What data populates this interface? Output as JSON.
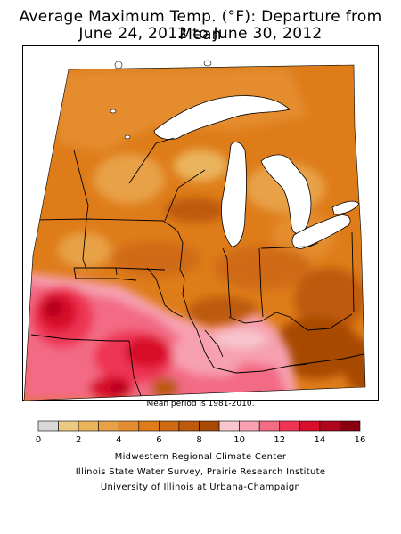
{
  "title_line1": "Average Maximum Temp. (°F): Departure from Mean",
  "title_line2": "June 24, 2012 to June 30, 2012",
  "mean_note": "Mean period is 1981-2010.",
  "legend": {
    "ticks": [
      "0",
      "2",
      "4",
      "6",
      "8",
      "10",
      "12",
      "14",
      "16"
    ],
    "bins": [
      {
        "from": 0,
        "to": 1,
        "color": "#d9d9d9"
      },
      {
        "from": 1,
        "to": 2,
        "color": "#ecc981"
      },
      {
        "from": 2,
        "to": 3,
        "color": "#eab45c"
      },
      {
        "from": 3,
        "to": 4,
        "color": "#e8a146"
      },
      {
        "from": 4,
        "to": 5,
        "color": "#e48c2e"
      },
      {
        "from": 5,
        "to": 6,
        "color": "#de7c1a"
      },
      {
        "from": 6,
        "to": 7,
        "color": "#d06a12"
      },
      {
        "from": 7,
        "to": 8,
        "color": "#bd5a0b"
      },
      {
        "from": 8,
        "to": 9,
        "color": "#a84a06"
      },
      {
        "from": 9,
        "to": 10,
        "color": "#f7c6ce"
      },
      {
        "from": 10,
        "to": 11,
        "color": "#f6a0b0"
      },
      {
        "from": 11,
        "to": 12,
        "color": "#f36b84"
      },
      {
        "from": 12,
        "to": 13,
        "color": "#ee3554"
      },
      {
        "from": 13,
        "to": 14,
        "color": "#d80f2c"
      },
      {
        "from": 14,
        "to": 15,
        "color": "#b0061c"
      },
      {
        "from": 15,
        "to": 16,
        "color": "#880010"
      }
    ]
  },
  "credits": [
    "Midwestern Regional Climate Center",
    "Illinois State Water Survey, Prairie Research Institute",
    "University of Illinois at Urbana-Champaign"
  ],
  "colors": {
    "lake": "#ffffff",
    "boundary": "#000000",
    "frame": "#000000"
  }
}
